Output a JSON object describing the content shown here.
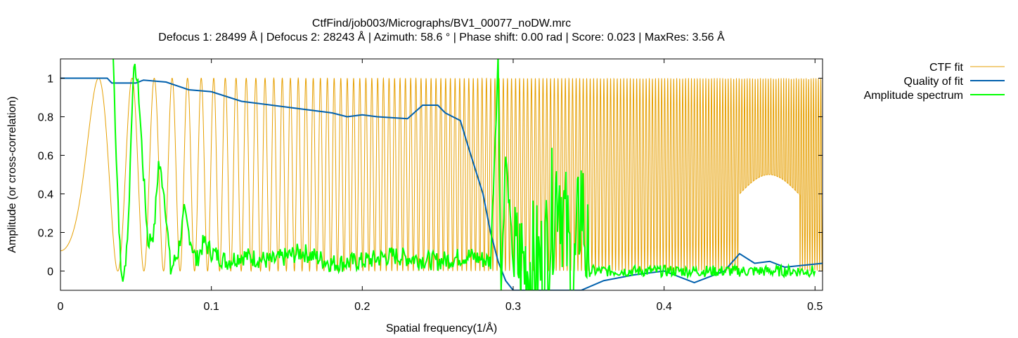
{
  "chart_data": {
    "type": "line",
    "title": "CtfFind/job003/Micrographs/BV1_00077_noDW.mrc",
    "subtitle": "Defocus 1: 28499 Å | Defocus 2: 28243 Å | Azimuth: 58.6 ° | Phase shift: 0.00 rad | Score: 0.023 | MaxRes: 3.56 Å",
    "xlabel": "Spatial frequency(1/Å)",
    "ylabel": "Amplitude (or cross-correlation)",
    "xlim": [
      0,
      0.505
    ],
    "ylim": [
      -0.1,
      1.1
    ],
    "x_ticks": [
      "0",
      "0.1",
      "0.2",
      "0.3",
      "0.4",
      "0.5"
    ],
    "y_ticks": [
      "0",
      "0.2",
      "0.4",
      "0.6",
      "0.8",
      "1"
    ],
    "grid": false,
    "legend_position": "top-right, outside plot",
    "series": [
      {
        "name": "CTF fit",
        "color": "#e69f00",
        "description_of_shape": "oscillating CTF curve between ~0 and 1, increasing frequency with spatial frequency",
        "x": [
          0.0,
          0.015,
          0.028,
          0.035,
          0.045,
          0.055,
          0.063,
          0.07,
          0.08,
          0.1,
          0.15,
          0.2,
          0.25,
          0.3,
          0.35,
          0.4,
          0.45,
          0.5
        ],
        "y": [
          0.1,
          0.55,
          1.0,
          0.6,
          0.02,
          1.0,
          0.01,
          1.0,
          0.05,
          0.1,
          0.08,
          0.05,
          0.05,
          0.2,
          0.25,
          0.4,
          0.4,
          0.45
        ]
      },
      {
        "name": "Quality of fit",
        "color": "#0060ad",
        "x": [
          0.0,
          0.031,
          0.034,
          0.05,
          0.055,
          0.07,
          0.085,
          0.1,
          0.12,
          0.14,
          0.16,
          0.18,
          0.19,
          0.2,
          0.21,
          0.23,
          0.24,
          0.25,
          0.255,
          0.265,
          0.27,
          0.28,
          0.285,
          0.29,
          0.295,
          0.3,
          0.345,
          0.36,
          0.38,
          0.4,
          0.41,
          0.42,
          0.44,
          0.45,
          0.46,
          0.47,
          0.48,
          0.505
        ],
        "y": [
          1.0,
          1.0,
          0.975,
          0.975,
          0.99,
          0.98,
          0.94,
          0.93,
          0.88,
          0.86,
          0.84,
          0.82,
          0.8,
          0.81,
          0.8,
          0.79,
          0.86,
          0.86,
          0.82,
          0.78,
          0.65,
          0.4,
          0.2,
          0.05,
          -0.05,
          -0.1,
          -0.1,
          -0.05,
          -0.02,
          0.0,
          -0.03,
          -0.06,
          0.0,
          0.09,
          0.04,
          0.05,
          0.02,
          0.04
        ]
      },
      {
        "name": "Amplitude spectrum",
        "color": "#00ff00",
        "x": [
          0.035,
          0.037,
          0.04,
          0.042,
          0.045,
          0.048,
          0.05,
          0.052,
          0.055,
          0.058,
          0.062,
          0.065,
          0.068,
          0.07,
          0.073,
          0.078,
          0.082,
          0.085,
          0.09,
          0.095,
          0.1,
          0.11,
          0.12,
          0.14,
          0.16,
          0.18,
          0.2,
          0.22,
          0.25,
          0.27,
          0.285,
          0.29,
          0.292,
          0.295,
          0.3,
          0.32,
          0.33,
          0.34,
          0.345,
          0.35,
          0.36,
          0.4,
          0.45,
          0.5
        ],
        "y": [
          1.1,
          0.6,
          0.0,
          -0.05,
          0.25,
          1.0,
          1.04,
          0.9,
          0.5,
          0.15,
          0.2,
          0.56,
          0.45,
          0.3,
          0.0,
          0.1,
          0.3,
          0.2,
          0.05,
          0.15,
          0.1,
          0.05,
          0.08,
          0.05,
          0.1,
          0.04,
          0.05,
          0.08,
          0.05,
          0.08,
          0.05,
          1.1,
          -0.1,
          0.6,
          0.05,
          0.02,
          0.5,
          -0.1,
          0.4,
          0.0,
          0.0,
          0.0,
          0.0,
          0.0
        ]
      }
    ]
  }
}
